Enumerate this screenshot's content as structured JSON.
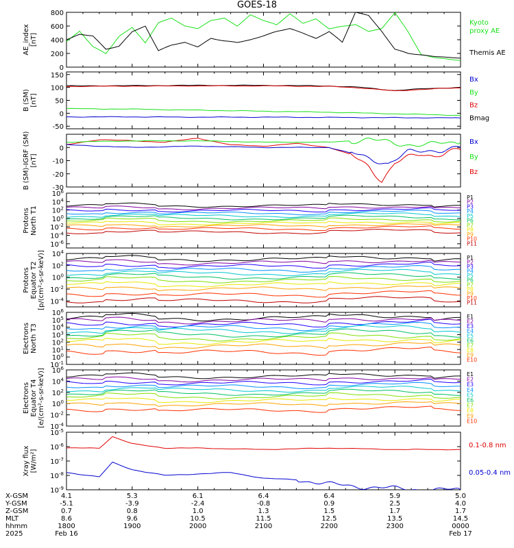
{
  "title": "GOES-18",
  "colors": {
    "black": "#000000",
    "green": "#19e019",
    "red": "#e00000",
    "blue": "#0000d0",
    "channels": [
      "#000000",
      "#8000a0",
      "#2000ff",
      "#0090ff",
      "#00c8d0",
      "#00c060",
      "#80e000",
      "#e8e800",
      "#ffa000",
      "#ff3000",
      "#c00000"
    ]
  },
  "chart_data": [
    {
      "type": "line",
      "name": "ae",
      "ylabel": [
        "AE_index",
        "[nT]"
      ],
      "ylim": [
        0,
        800
      ],
      "yticks": [
        "800",
        "600",
        "400",
        "200",
        "0"
      ],
      "legend": [
        {
          "label": "Kyoto",
          "color": "green"
        },
        {
          "label": "proxy AE",
          "color": "green"
        },
        {
          "label": "Themis AE",
          "color": "black"
        }
      ],
      "series": [
        {
          "name": "Kyoto proxy AE",
          "color": "green",
          "x": [
            18.0,
            18.2,
            18.4,
            18.6,
            18.8,
            19.0,
            19.2,
            19.4,
            19.6,
            19.8,
            20.0,
            20.2,
            20.4,
            20.6,
            20.8,
            21.0,
            21.2,
            21.4,
            21.6,
            21.8,
            22.0,
            22.2,
            22.4,
            22.6,
            22.8,
            23.0,
            23.2,
            23.4,
            23.6,
            23.8,
            24.0
          ],
          "values": [
            380,
            520,
            300,
            200,
            450,
            580,
            350,
            650,
            720,
            600,
            560,
            680,
            720,
            600,
            760,
            680,
            620,
            780,
            640,
            700,
            560,
            600,
            620,
            520,
            560,
            800,
            520,
            180,
            140,
            120,
            100
          ]
        },
        {
          "name": "Themis AE",
          "color": "black",
          "x": [
            18.0,
            18.2,
            18.4,
            18.6,
            18.8,
            19.0,
            19.2,
            19.4,
            19.6,
            19.8,
            20.0,
            20.2,
            20.4,
            20.6,
            20.8,
            21.0,
            21.2,
            21.4,
            21.6,
            21.8,
            22.0,
            22.2,
            22.4,
            22.6,
            22.8,
            23.0,
            23.2,
            23.4,
            23.6,
            23.8,
            24.0
          ],
          "values": [
            400,
            480,
            460,
            260,
            300,
            520,
            600,
            240,
            320,
            360,
            300,
            420,
            380,
            360,
            400,
            460,
            520,
            560,
            500,
            420,
            520,
            360,
            800,
            760,
            520,
            260,
            200,
            180,
            160,
            140,
            130
          ]
        }
      ]
    },
    {
      "type": "line",
      "name": "bsm",
      "ylabel": [
        "B (SM)",
        "[nT]"
      ],
      "ylim": [
        -60,
        160
      ],
      "yticks": [
        "150",
        "100",
        "50",
        "0",
        "-50"
      ],
      "legend": [
        {
          "label": "Bx",
          "color": "blue"
        },
        {
          "label": "By",
          "color": "green"
        },
        {
          "label": "Bz",
          "color": "red"
        },
        {
          "label": "Bmag",
          "color": "black"
        }
      ],
      "series": [
        {
          "name": "Bmag",
          "color": "black",
          "x": [
            18.0,
            19.0,
            20.0,
            21.0,
            22.0,
            22.5,
            23.0,
            23.5,
            24.0
          ],
          "values": [
            106,
            107,
            108,
            108,
            106,
            100,
            88,
            96,
            100
          ]
        },
        {
          "name": "Bz",
          "color": "red",
          "x": [
            18.0,
            19.0,
            20.0,
            21.0,
            22.0,
            22.5,
            23.0,
            23.5,
            24.0
          ],
          "values": [
            104,
            105,
            106,
            106,
            104,
            98,
            86,
            94,
            98
          ]
        },
        {
          "name": "By",
          "color": "green",
          "x": [
            18.0,
            19.0,
            20.0,
            21.0,
            22.0,
            23.0,
            24.0
          ],
          "values": [
            18,
            16,
            12,
            8,
            4,
            -2,
            -8
          ]
        },
        {
          "name": "Bx",
          "color": "blue",
          "x": [
            18.0,
            19.0,
            20.0,
            21.0,
            22.0,
            23.0,
            24.0
          ],
          "values": [
            -14,
            -14,
            -15,
            -15,
            -16,
            -17,
            -18
          ]
        }
      ]
    },
    {
      "type": "line",
      "name": "bdiff",
      "ylabel": [
        "B (SM)-IGRF (SM)",
        "[nT]"
      ],
      "ylim": [
        -30,
        10
      ],
      "yticks": [
        "0",
        "-10",
        "-20",
        "-30"
      ],
      "legend": [
        {
          "label": "Bx",
          "color": "blue"
        },
        {
          "label": "By",
          "color": "green"
        },
        {
          "label": "Bz",
          "color": "red"
        }
      ],
      "series": [
        {
          "name": "Bz",
          "color": "red",
          "x": [
            18.0,
            18.5,
            19.0,
            19.5,
            20.0,
            20.5,
            21.0,
            21.5,
            22.0,
            22.3,
            22.6,
            22.8,
            23.0,
            23.2,
            23.4,
            23.6,
            23.8,
            24.0
          ],
          "values": [
            2,
            6,
            5,
            4,
            7,
            2,
            1,
            3,
            0,
            -5,
            -14,
            -25,
            -12,
            -8,
            -5,
            -6,
            -3,
            -2
          ]
        },
        {
          "name": "By",
          "color": "green",
          "x": [
            18.0,
            19.0,
            20.0,
            21.0,
            22.0,
            22.6,
            23.0,
            23.5,
            24.0
          ],
          "values": [
            4,
            5,
            5,
            4,
            4,
            6,
            3,
            2,
            4
          ]
        },
        {
          "name": "Bx",
          "color": "blue",
          "x": [
            18.0,
            19.0,
            20.0,
            21.0,
            22.0,
            22.6,
            22.9,
            23.2,
            23.6,
            24.0
          ],
          "values": [
            2,
            0,
            1,
            0,
            0,
            -8,
            -12,
            -4,
            -2,
            0
          ]
        }
      ]
    },
    {
      "type": "line",
      "name": "protons-north",
      "log": true,
      "ylabel": [
        "Protons",
        "North T1"
      ],
      "ylim": [
        -7,
        6
      ],
      "yticks": [
        {
          "base": "10",
          "exp": "6",
          "v": 6
        },
        {
          "base": "10",
          "exp": "4",
          "v": 4
        },
        {
          "base": "10",
          "exp": "2",
          "v": 2
        },
        {
          "base": "10",
          "exp": "0",
          "v": 0
        },
        {
          "base": "10",
          "exp": "-2",
          "v": -2
        },
        {
          "base": "10",
          "exp": "-4",
          "v": -4
        },
        {
          "base": "10",
          "exp": "-6",
          "v": -6
        }
      ],
      "legend": [
        "P1",
        "P2",
        "P3",
        "P4",
        "P5",
        "P6",
        "P7",
        "P8",
        "P9",
        "P10",
        "P11"
      ],
      "levels": [
        3.0,
        2.4,
        1.8,
        1.2,
        0.6,
        0.0,
        -0.6,
        -1.2,
        -1.8,
        -2.5,
        -3.3
      ]
    },
    {
      "type": "line",
      "name": "protons-equator",
      "log": true,
      "ylabel": [
        "Protons",
        "Equator T2",
        "[p/(cm²-s-sr-keV)]"
      ],
      "ylim": [
        -5,
        4
      ],
      "yticks": [
        {
          "base": "10",
          "exp": "4",
          "v": 4
        },
        {
          "base": "10",
          "exp": "2",
          "v": 2
        },
        {
          "base": "10",
          "exp": "0",
          "v": 0
        },
        {
          "base": "10",
          "exp": "-2",
          "v": -2
        },
        {
          "base": "10",
          "exp": "-4",
          "v": -4
        }
      ],
      "legend": [
        "P1",
        "P2",
        "P3",
        "P4",
        "P5",
        "P6",
        "P7",
        "P8",
        "P9",
        "P10",
        "P11"
      ],
      "levels": [
        3.0,
        2.4,
        1.8,
        1.2,
        0.6,
        0.0,
        -0.6,
        -1.3,
        -2.0,
        -3.0,
        -4.0
      ]
    },
    {
      "type": "line",
      "name": "electrons-north",
      "log": true,
      "ylabel": [
        "Electrons",
        "North T3"
      ],
      "ylim": [
        -1,
        6
      ],
      "yticks": [
        {
          "base": "10",
          "exp": "6",
          "v": 6
        },
        {
          "base": "10",
          "exp": "5",
          "v": 5
        },
        {
          "base": "10",
          "exp": "4",
          "v": 4
        },
        {
          "base": "10",
          "exp": "3",
          "v": 3
        },
        {
          "base": "10",
          "exp": "2",
          "v": 2
        },
        {
          "base": "10",
          "exp": "1",
          "v": 1
        },
        {
          "base": "10",
          "exp": "0",
          "v": 0
        },
        {
          "base": "10",
          "exp": "-1",
          "v": -1
        }
      ],
      "legend": [
        "E1",
        "E2",
        "E3",
        "E4",
        "E5",
        "E6",
        "E7",
        "E8",
        "E9",
        "E10"
      ],
      "levels": [
        5.2,
        4.8,
        4.3,
        3.9,
        3.5,
        3.0,
        2.5,
        2.0,
        1.4,
        0.6
      ]
    },
    {
      "type": "line",
      "name": "electrons-equator",
      "log": true,
      "ylabel": [
        "Electrons",
        "Equator T4",
        "[e/(cm²-s-sr-keV)]"
      ],
      "ylim": [
        -4,
        6
      ],
      "yticks": [
        {
          "base": "10",
          "exp": "6",
          "v": 6
        },
        {
          "base": "10",
          "exp": "4",
          "v": 4
        },
        {
          "base": "10",
          "exp": "2",
          "v": 2
        },
        {
          "base": "10",
          "exp": "0",
          "v": 0
        },
        {
          "base": "10",
          "exp": "-2",
          "v": -2
        },
        {
          "base": "10",
          "exp": "-4",
          "v": -4
        }
      ],
      "legend": [
        "E1",
        "E2",
        "E3",
        "E4",
        "E5",
        "E6",
        "E7",
        "E8",
        "E9",
        "E10"
      ],
      "levels": [
        4.8,
        4.2,
        3.6,
        3.0,
        2.4,
        1.8,
        1.2,
        0.5,
        -0.2,
        -1.2
      ]
    },
    {
      "type": "line",
      "name": "xray",
      "log": true,
      "ylabel": [
        "Xray flux",
        "[W/m²]"
      ],
      "ylim": [
        -9,
        -5
      ],
      "yticks": [
        {
          "base": "10",
          "exp": "-5",
          "v": -5
        },
        {
          "base": "10",
          "exp": "-6",
          "v": -6
        },
        {
          "base": "10",
          "exp": "-7",
          "v": -7
        },
        {
          "base": "10",
          "exp": "-8",
          "v": -8
        },
        {
          "base": "10",
          "exp": "-9",
          "v": -9
        }
      ],
      "legend": [
        {
          "label": "0.1-0.8 nm",
          "color": "red"
        },
        {
          "label": "0.05-0.4 nm",
          "color": "blue"
        }
      ],
      "series": [
        {
          "name": "0.1-0.8 nm",
          "color": "red",
          "x": [
            18.0,
            18.5,
            18.7,
            19.0,
            19.5,
            20.0,
            21.0,
            22.0,
            23.0,
            24.0
          ],
          "values": [
            -6.1,
            -6.1,
            -5.3,
            -5.8,
            -6.1,
            -6.1,
            -6.2,
            -6.1,
            -6.2,
            -6.2
          ]
        },
        {
          "name": "0.05-0.4 nm",
          "color": "blue",
          "x": [
            18.0,
            18.5,
            18.7,
            19.0,
            19.5,
            20.0,
            20.5,
            21.0,
            21.5,
            22.0,
            22.5,
            23.0,
            23.5,
            24.0
          ],
          "values": [
            -7.8,
            -8.1,
            -7.1,
            -7.6,
            -8.0,
            -7.9,
            -7.8,
            -8.2,
            -8.3,
            -8.6,
            -8.8,
            -8.9,
            -9.0,
            -9.0
          ]
        }
      ]
    }
  ],
  "axis_footer": {
    "labels": [
      "X-GSM",
      "Y-GSM",
      "Z-GSM",
      "MLT",
      "hhmm",
      "2025"
    ],
    "columns": [
      {
        "t": 18,
        "values": [
          "4.1",
          "-5.1",
          "0.7",
          "8.6",
          "1800",
          "Feb 16"
        ]
      },
      {
        "t": 19,
        "values": [
          "5.3",
          "-3.9",
          "0.8",
          "9.6",
          "1900",
          ""
        ]
      },
      {
        "t": 20,
        "values": [
          "6.1",
          "-2.4",
          "1.0",
          "10.5",
          "2000",
          ""
        ]
      },
      {
        "t": 21,
        "values": [
          "6.4",
          "-0.8",
          "1.3",
          "11.5",
          "2100",
          ""
        ]
      },
      {
        "t": 22,
        "values": [
          "6.4",
          "0.9",
          "1.5",
          "12.5",
          "2200",
          ""
        ]
      },
      {
        "t": 23,
        "values": [
          "5.9",
          "2.5",
          "1.7",
          "13.5",
          "2300",
          ""
        ]
      },
      {
        "t": 24,
        "values": [
          "5.0",
          "4.0",
          "1.7",
          "14.5",
          "0000",
          "Feb 17"
        ]
      }
    ]
  }
}
